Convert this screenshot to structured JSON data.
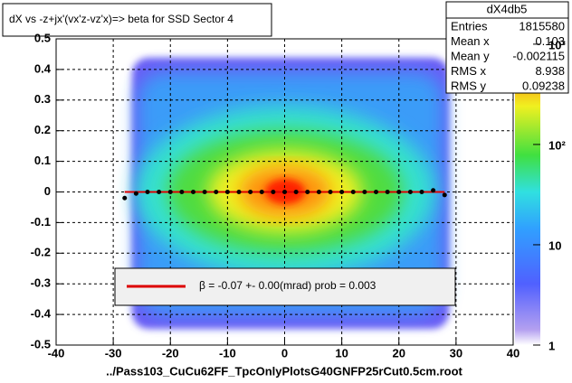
{
  "chart_data": {
    "type": "heatmap",
    "title": "dX vs  -z+jx'(vx'z-vz'x)=> beta  for SSD Sector 4",
    "x_label": "../Pass103_CuCu62FF_TpcOnlyPlotsG40GNFP25rCut0.5cm.root",
    "xlim": [
      -40,
      40
    ],
    "xticks": [
      -40,
      -30,
      -20,
      -10,
      0,
      10,
      20,
      30,
      40
    ],
    "ylim": [
      -0.5,
      0.5
    ],
    "yticks": [
      -0.5,
      -0.4,
      -0.3,
      -0.2,
      -0.1,
      0,
      0.1,
      0.2,
      0.3,
      0.4,
      0.5
    ],
    "zlim": [
      1,
      1130
    ],
    "zscale": "log",
    "zticks": [
      1,
      10,
      {
        "value": 100,
        "label": "10²"
      },
      {
        "value": 1000,
        "label": "10³"
      }
    ],
    "grid": true,
    "profile": {
      "color": "#000000",
      "x": [
        -28,
        -26,
        -24,
        -22,
        -20,
        -18,
        -16,
        -14,
        -12,
        -10,
        -8,
        -6,
        -4,
        -2,
        0,
        2,
        4,
        6,
        8,
        10,
        12,
        14,
        16,
        18,
        20,
        22,
        24,
        26,
        28
      ],
      "values": [
        -0.02,
        -0.005,
        0,
        0,
        0,
        0,
        0,
        0,
        0,
        0,
        0,
        0,
        0,
        0,
        0,
        0,
        0,
        0,
        0,
        0,
        0,
        0,
        0,
        0,
        0,
        0,
        0,
        0.005,
        -0.01
      ]
    },
    "legend": {
      "text": "β =    -0.07 +-     0.00(mrad) prob = 0.003",
      "color": "#dd0000"
    },
    "stats": {
      "title": "dX4db5",
      "rows": [
        {
          "label": "Entries",
          "value": 1815580
        },
        {
          "label": "Mean x",
          "value": 0.103
        },
        {
          "label": "Mean y",
          "value": -0.002115
        },
        {
          "label": "RMS x",
          "value": 8.938
        },
        {
          "label": "RMS y",
          "value": 0.09238
        }
      ]
    }
  }
}
